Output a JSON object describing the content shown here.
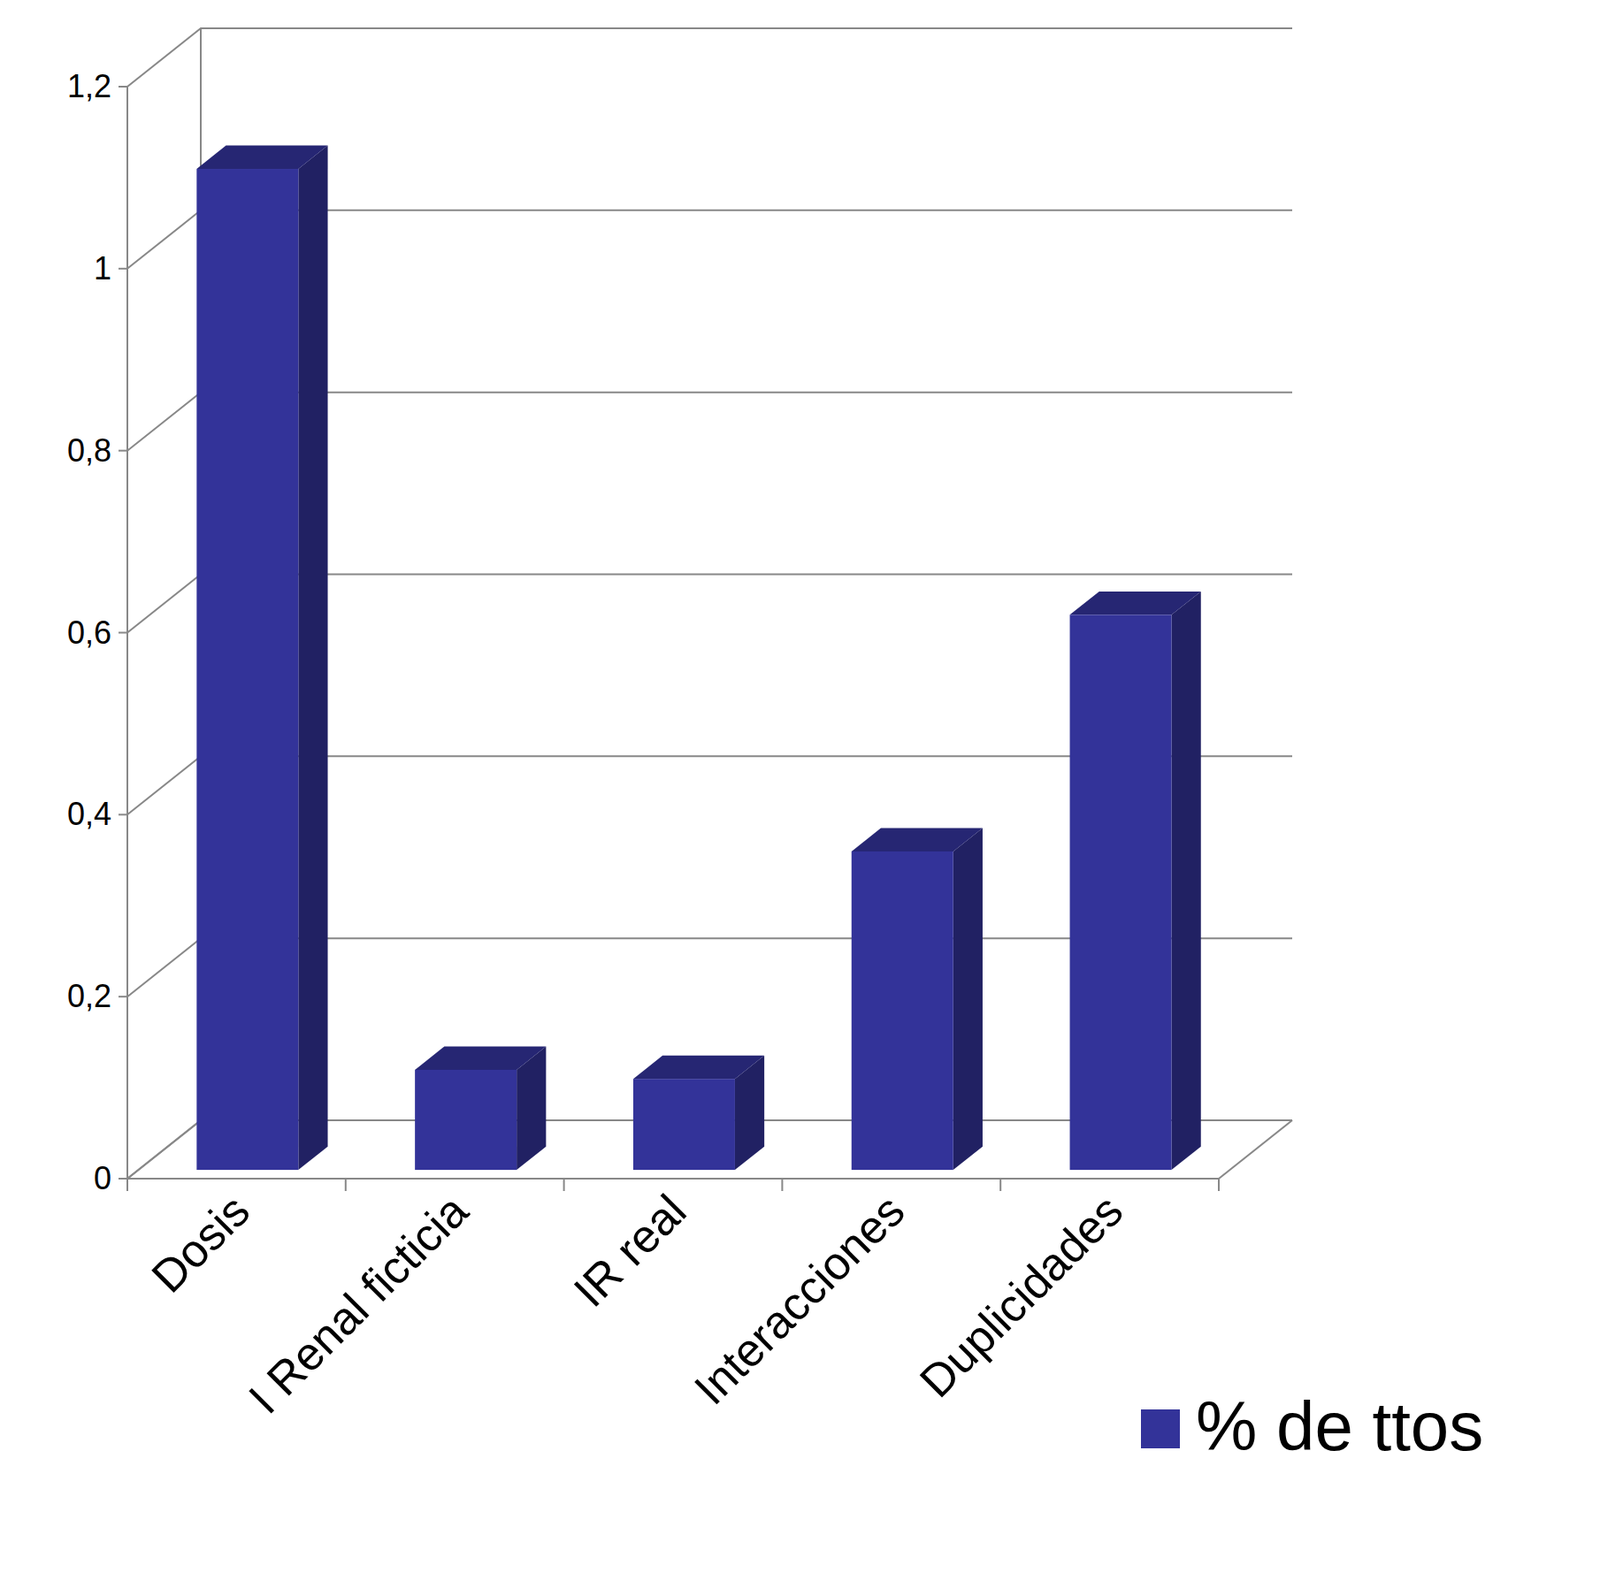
{
  "chart_data": {
    "type": "bar",
    "categories": [
      "Dosis",
      "I Renal ficticia",
      "IR real",
      "Interacciones",
      "Duplicidades"
    ],
    "series": [
      {
        "name": "% de ttos",
        "color": "#333399",
        "values": [
          1.1,
          0.11,
          0.1,
          0.35,
          0.61
        ]
      }
    ],
    "ylim": [
      0,
      1.2
    ],
    "yticks": [
      0,
      {
        "value": 0.2,
        "label": "0,2"
      },
      {
        "value": 0.4,
        "label": "0,4"
      },
      {
        "value": 0.6,
        "label": "0,6"
      },
      {
        "value": 0.8,
        "label": "0,8"
      },
      1,
      {
        "value": 1.2,
        "label": "1,2"
      }
    ],
    "grid": true,
    "legend": "bottom-right"
  }
}
